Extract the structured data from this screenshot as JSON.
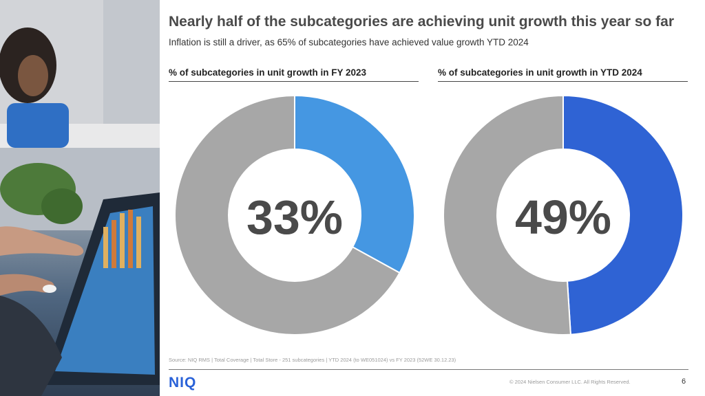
{
  "title": "Nearly half of the subcategories are achieving unit growth this year so far",
  "subtitle": "Inflation is still a driver, as 65% of subcategories have achieved value growth YTD 2024",
  "chart_data": [
    {
      "type": "pie",
      "title": "% of subcategories in unit growth in FY 2023",
      "center_label": "33%",
      "values": [
        33,
        67
      ],
      "colors": [
        "#4597e2",
        "#a7a7a7"
      ]
    },
    {
      "type": "pie",
      "title": "% of subcategories in unit growth in YTD 2024",
      "center_label": "49%",
      "values": [
        49,
        51
      ],
      "colors": [
        "#2f63d4",
        "#a7a7a7"
      ]
    }
  ],
  "source": "Source: NIQ RMS | Total Coverage | Total Store - 251 subcategories | YTD 2024 (to WE051024) vs FY 2023 (52WE 30.12.23)",
  "logo_text": "NIQ",
  "copyright": "© 2024 Nielsen Consumer LLC. All Rights Reserved.",
  "page_number": "6",
  "colors": {
    "title_text": "#4a4a4a",
    "brand_blue": "#2a62d8",
    "remainder_gray": "#a7a7a7"
  }
}
